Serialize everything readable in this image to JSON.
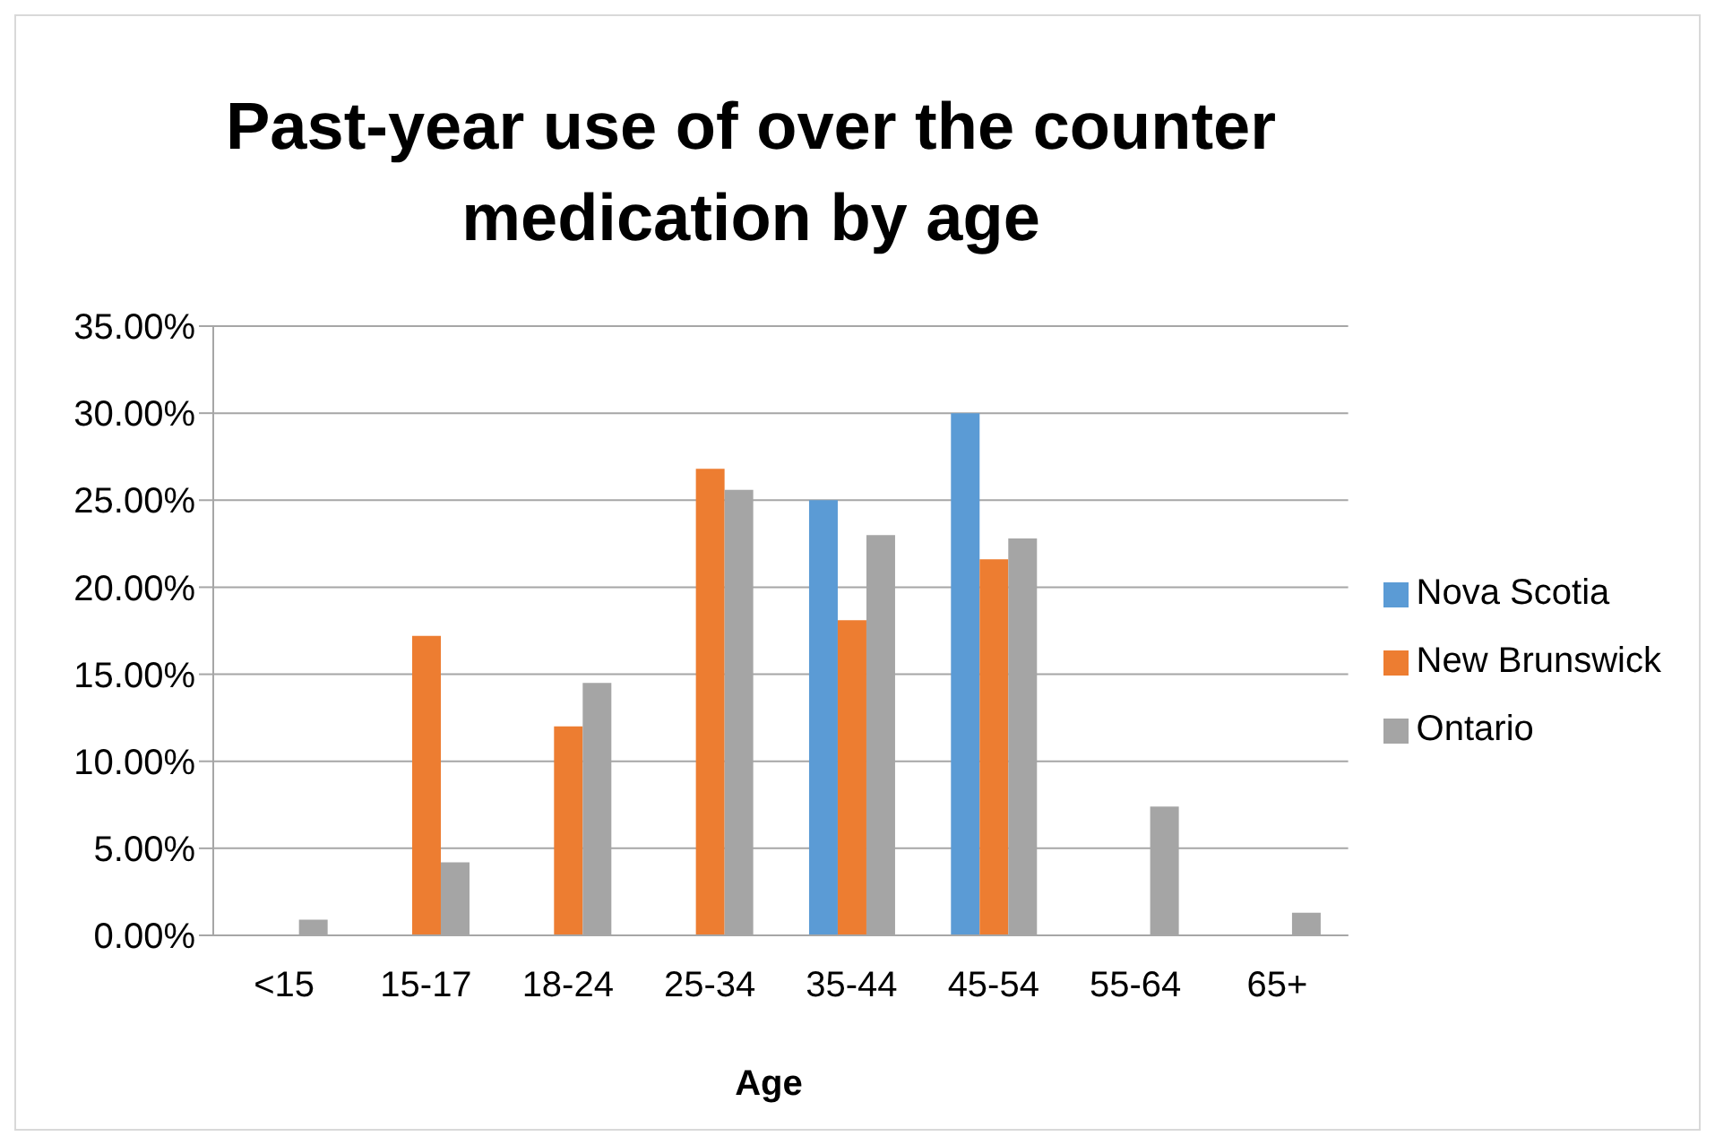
{
  "chart_data": {
    "type": "bar",
    "title": "Past-year use of over the counter medication by age",
    "xlabel": "Age",
    "categories": [
      "<15",
      "15-17",
      "18-24",
      "25-34",
      "35-44",
      "45-54",
      "55-64",
      "65+"
    ],
    "series": [
      {
        "name": "Nova Scotia",
        "color": "#5b9bd5",
        "values": [
          null,
          null,
          null,
          null,
          25.0,
          30.0,
          null,
          null
        ]
      },
      {
        "name": "New Brunswick",
        "color": "#ed7d31",
        "values": [
          null,
          17.2,
          12.0,
          26.8,
          18.1,
          21.6,
          null,
          null
        ]
      },
      {
        "name": "Ontario",
        "color": "#a5a5a5",
        "values": [
          0.9,
          4.2,
          14.5,
          25.6,
          23.0,
          22.8,
          7.4,
          1.3
        ]
      }
    ],
    "ylim": [
      0,
      35
    ],
    "yticks": [
      {
        "value": 0,
        "label": "0.00%"
      },
      {
        "value": 5,
        "label": "5.00%"
      },
      {
        "value": 10,
        "label": "10.00%"
      },
      {
        "value": 15,
        "label": "15.00%"
      },
      {
        "value": 20,
        "label": "20.00%"
      },
      {
        "value": 25,
        "label": "25.00%"
      },
      {
        "value": 30,
        "label": "30.00%"
      },
      {
        "value": 35,
        "label": "35.00%"
      }
    ],
    "grid": "y",
    "legend": "right"
  }
}
